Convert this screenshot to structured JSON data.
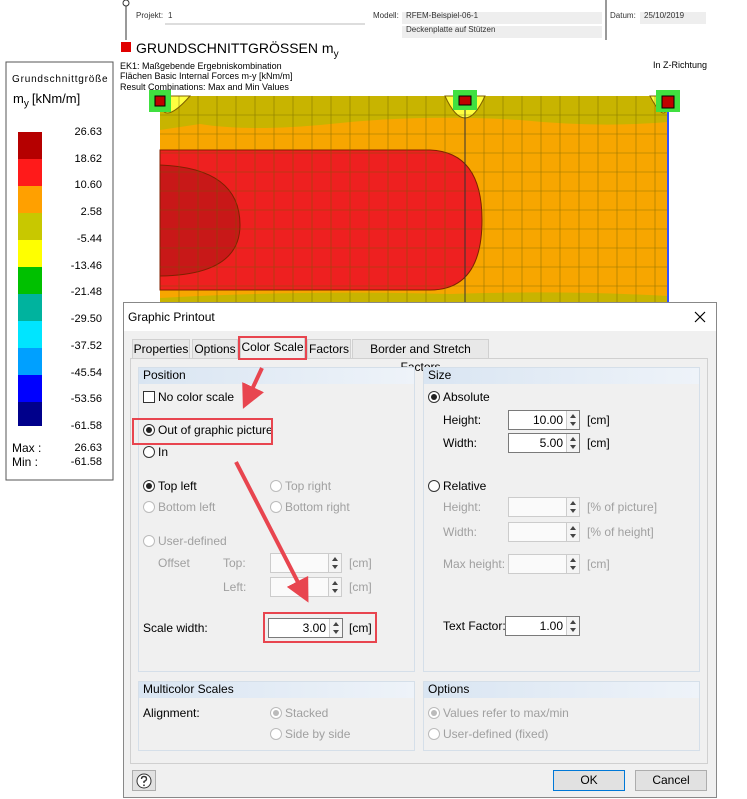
{
  "header": {
    "project_label": "Projekt:",
    "project": "1",
    "model_label": "Modell:",
    "model": "RFEM-Beispiel-06-1",
    "model_description": "Deckenplatte auf Stützen",
    "date_label": "Datum:",
    "date": "25/10/2019"
  },
  "report": {
    "title": "GRUNDSCHNITTGRÖSSEN m",
    "title_subscript": "y",
    "info": [
      "EK1: Maßgebende Ergebniskombination",
      "Flächen Basic Internal Forces m-y [kNm/m]",
      "Result Combinations: Max and Min Values"
    ],
    "direction": "In Z-Richtung"
  },
  "legend": {
    "title": "Grundschnittgröße",
    "symbol": "m",
    "symbol_subscript": "y",
    "unit": "[kNm/m]",
    "values": [
      "26.63",
      "18.62",
      "10.60",
      "2.58",
      "-5.44",
      "-13.46",
      "-21.48",
      "-29.50",
      "-37.52",
      "-45.54",
      "-53.56",
      "-61.58"
    ],
    "max_label": "Max :",
    "max": "26.63",
    "min_label": "Min :",
    "min": "-61.58"
  },
  "dialog": {
    "title": "Graphic Printout",
    "tabs": [
      "Properties",
      "Options",
      "Color Scale",
      "Factors",
      "Border and Stretch Factors"
    ],
    "position": {
      "heading": "Position",
      "no_color_scale": "No color scale",
      "out_of_graphic": "Out of graphic picture",
      "in": "In",
      "top_left": "Top left",
      "top_right": "Top right",
      "bottom_left": "Bottom left",
      "bottom_right": "Bottom right",
      "user_defined": "User-defined",
      "offset": "Offset",
      "top": "Top:",
      "left": "Left:",
      "top_unit": "[cm]",
      "left_unit": "[cm]",
      "scale_width_label": "Scale width:",
      "scale_width": "3.00",
      "scale_width_unit": "[cm]"
    },
    "size": {
      "heading": "Size",
      "absolute": "Absolute",
      "height_label": "Height:",
      "height": "10.00",
      "height_unit": "[cm]",
      "width_label": "Width:",
      "width": "5.00",
      "width_unit": "[cm]",
      "relative": "Relative",
      "rel_height_label": "Height:",
      "rel_height_unit": "[% of picture]",
      "rel_width_label": "Width:",
      "rel_width_unit": "[% of height]",
      "max_height_label": "Max height:",
      "max_height_unit": "[cm]",
      "text_factor_label": "Text Factor:",
      "text_factor": "1.00"
    },
    "multicolor": {
      "heading": "Multicolor Scales",
      "alignment": "Alignment:",
      "stacked": "Stacked",
      "side_by_side": "Side by side"
    },
    "options": {
      "heading": "Options",
      "values_refer": "Values refer to max/min",
      "user_defined_fixed": "User-defined (fixed)"
    },
    "buttons": {
      "ok": "OK",
      "cancel": "Cancel"
    }
  }
}
